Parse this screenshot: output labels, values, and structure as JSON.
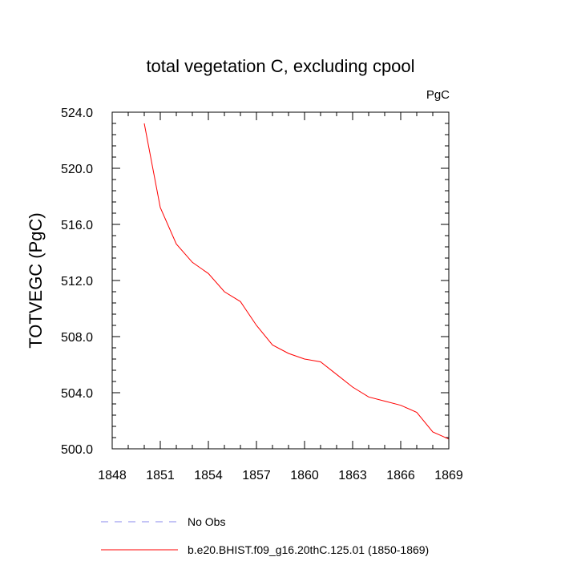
{
  "chart_data": {
    "type": "line",
    "title": "total vegetation C, excluding cpool",
    "units": "PgC",
    "ylabel": "TOTVEGC  (PgC)",
    "xlabel": "",
    "xlim": [
      1848,
      1869
    ],
    "ylim": [
      500.0,
      524.0
    ],
    "xticks": [
      1848,
      1851,
      1854,
      1857,
      1860,
      1863,
      1866,
      1869
    ],
    "xtick_labels": [
      "1848",
      "1851",
      "1854",
      "1857",
      "1860",
      "1863",
      "1866",
      "1869"
    ],
    "yticks": [
      500.0,
      504.0,
      508.0,
      512.0,
      516.0,
      520.0,
      524.0
    ],
    "ytick_labels": [
      "500.0",
      "504.0",
      "508.0",
      "512.0",
      "516.0",
      "520.0",
      "524.0"
    ],
    "legend_placement": "bottom",
    "series": [
      {
        "name": "b.e20.BHIST.f09_g16.20thC.125.01 (1850-1869)",
        "color": "#ff0000",
        "style": "solid",
        "x": [
          1850,
          1851,
          1852,
          1853,
          1854,
          1855,
          1856,
          1857,
          1858,
          1859,
          1860,
          1861,
          1862,
          1863,
          1864,
          1865,
          1866,
          1867,
          1868,
          1869
        ],
        "y": [
          523.2,
          517.2,
          514.6,
          513.3,
          512.5,
          511.2,
          510.5,
          508.8,
          507.4,
          506.8,
          506.4,
          506.2,
          505.3,
          504.4,
          503.7,
          503.4,
          503.1,
          502.6,
          501.2,
          500.7
        ]
      }
    ],
    "legend": [
      {
        "label": "No Obs",
        "color": "#8888ee",
        "style": "dashed"
      },
      {
        "label": "b.e20.BHIST.f09_g16.20thC.125.01 (1850-1869)",
        "color": "#ff0000",
        "style": "solid"
      }
    ]
  }
}
